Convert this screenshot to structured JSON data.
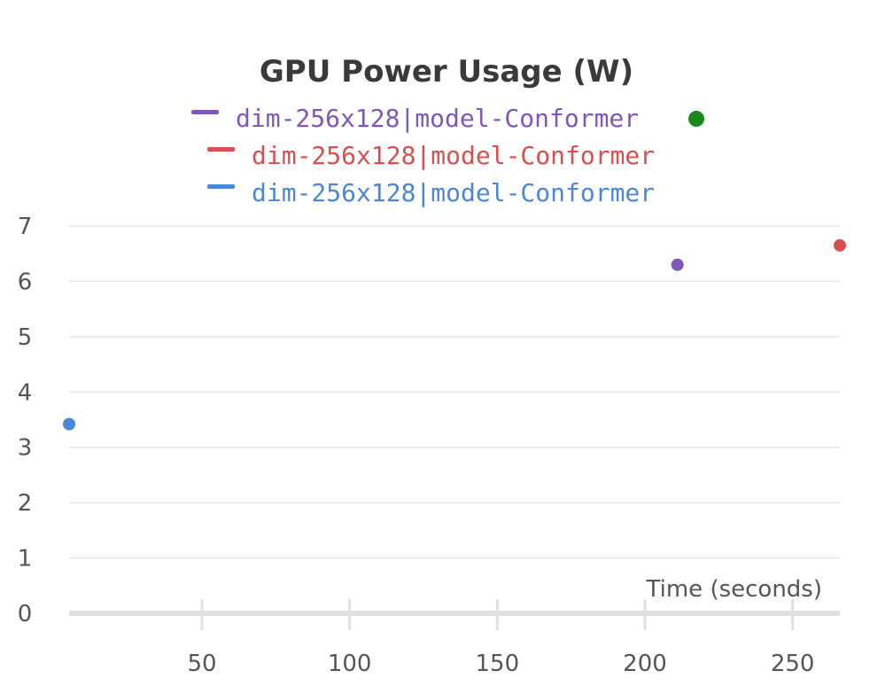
{
  "chart_data": {
    "type": "scatter",
    "title": "GPU Power Usage (W)",
    "xlabel": "Time (seconds)",
    "ylabel": "",
    "xlim": [
      5,
      266
    ],
    "ylim": [
      0,
      7
    ],
    "x_ticks": [
      50,
      100,
      150,
      200,
      250
    ],
    "y_ticks": [
      0,
      1,
      2,
      3,
      4,
      5,
      6,
      7
    ],
    "grid": true,
    "legend_position": "top-center",
    "legend_indicator_color": "#1a8a1a",
    "series": [
      {
        "name": "dim-256x128|model-Conformer",
        "color": "#7e57b8",
        "points": [
          [
            211,
            6.3
          ]
        ]
      },
      {
        "name": "dim-256x128|model-Conformer",
        "color": "#d94f4f",
        "points": [
          [
            266,
            6.65
          ]
        ]
      },
      {
        "name": "dim-256x128|model-Conformer",
        "color": "#4a86d9",
        "points": [
          [
            5,
            3.42
          ]
        ]
      }
    ]
  }
}
